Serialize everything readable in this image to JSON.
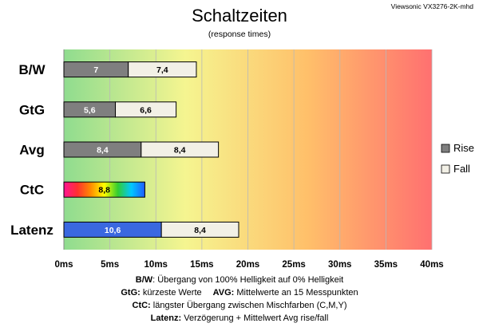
{
  "header": {
    "title": "Schaltzeiten",
    "subtitle": "(response times)",
    "model": "Viewsonic VX3276-2K-mhd"
  },
  "legend": {
    "items": [
      {
        "label": "Rise",
        "color": "#7f7f7f"
      },
      {
        "label": "Fall",
        "color": "#f2f0e6"
      }
    ]
  },
  "notes": [
    {
      "key": "B/W",
      "text": ":  Übergang von 100% Helligkeit auf 0% Helligkeit"
    },
    {
      "key": "GtG:",
      "text": " kürzeste  Werte",
      "key2": "AVG:",
      "text2": " Mittelwerte  an 15 Messpunkten"
    },
    {
      "key": "CtC:",
      "text": " längster Übergang  zwischen Mischfarben  (C,M,Y)"
    },
    {
      "key": "Latenz:",
      "text": " Verzögerung  + Mittelwert  Avg rise/fall"
    }
  ],
  "chart_data": {
    "type": "bar",
    "orientation": "horizontal",
    "stacked": true,
    "categories": [
      "B/W",
      "GtG",
      "Avg",
      "CtC",
      "Latenz"
    ],
    "series": [
      {
        "name": "Rise",
        "values": [
          7,
          5.6,
          8.4,
          8.8,
          10.6
        ],
        "labels": [
          "7",
          "5,6",
          "8,4",
          "8,8",
          "10,6"
        ]
      },
      {
        "name": "Fall",
        "values": [
          7.4,
          6.6,
          8.4,
          null,
          8.4
        ],
        "labels": [
          "7,4",
          "6,6",
          "8,4",
          "",
          "8,4"
        ]
      }
    ],
    "segment_colors": {
      "rise": "#7f7f7f",
      "fall": "#f2f0e6",
      "latency_rise": "#3a68e0"
    },
    "ctc_rainbow": [
      "#ff1493",
      "#ff3030",
      "#ff8c00",
      "#ffff00",
      "#32cd32",
      "#00c8ff",
      "#1e5cff"
    ],
    "xlim": [
      0,
      40
    ],
    "xticks": [
      0,
      5,
      10,
      15,
      20,
      25,
      30,
      35,
      40
    ],
    "xtick_labels": [
      "0ms",
      "5ms",
      "10ms",
      "15ms",
      "20ms",
      "25ms",
      "30ms",
      "35ms",
      "40ms"
    ],
    "background_gradient": [
      "#8fdc8f",
      "#f5f590",
      "#ffc06a",
      "#ff7070"
    ],
    "grid": true,
    "legend_position": "right"
  }
}
